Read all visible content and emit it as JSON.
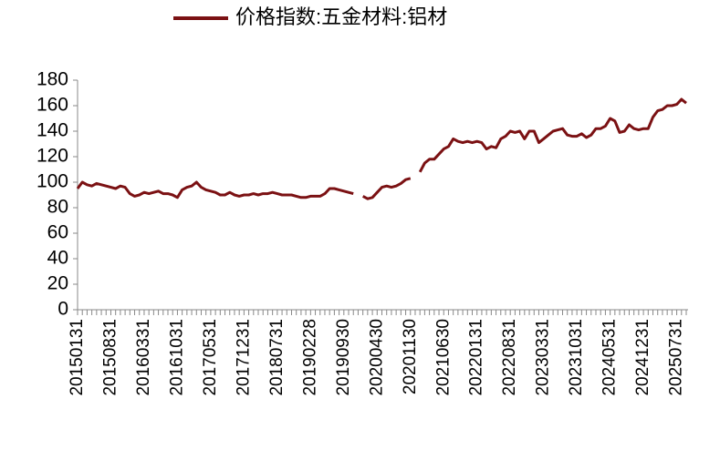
{
  "chart_data": {
    "type": "line",
    "categories": [
      "20150131",
      null,
      null,
      null,
      null,
      null,
      null,
      "20150831",
      null,
      null,
      null,
      null,
      null,
      null,
      "20160331",
      null,
      null,
      null,
      null,
      null,
      null,
      "20161031",
      null,
      null,
      null,
      null,
      null,
      null,
      "20170531",
      null,
      null,
      null,
      null,
      null,
      null,
      "20171231",
      null,
      null,
      null,
      null,
      null,
      null,
      "20180731",
      null,
      null,
      null,
      null,
      null,
      null,
      "20190228",
      null,
      null,
      null,
      null,
      null,
      null,
      "20190930",
      null,
      null,
      null,
      null,
      null,
      null,
      "20200430",
      null,
      null,
      null,
      null,
      null,
      null,
      "20201130",
      null,
      null,
      null,
      null,
      null,
      null,
      "20210630",
      null,
      null,
      null,
      null,
      null,
      null,
      "20220131",
      null,
      null,
      null,
      null,
      null,
      null,
      "20220831",
      null,
      null,
      null,
      null,
      null,
      null,
      "20230331",
      null,
      null,
      null,
      null,
      null,
      null,
      "20231031",
      null,
      null,
      null,
      null,
      null,
      null,
      "20240531",
      null,
      null,
      null,
      null,
      null,
      null,
      "20241231",
      null,
      null,
      null,
      null,
      null,
      null,
      "20250731",
      null,
      null
    ],
    "series": [
      {
        "name": "价格指数:五金材料:铝材",
        "color": "#7b1113",
        "values": [
          95,
          100,
          98,
          97,
          99,
          98,
          97,
          96,
          95,
          97,
          96,
          91,
          89,
          90,
          92,
          91,
          92,
          93,
          91,
          91,
          90,
          88,
          94,
          96,
          97,
          100,
          96,
          94,
          93,
          92,
          90,
          90,
          92,
          90,
          89,
          90,
          90,
          91,
          90,
          91,
          91,
          92,
          91,
          90,
          90,
          90,
          89,
          88,
          88,
          89,
          89,
          89,
          91,
          95,
          95,
          94,
          93,
          92,
          91,
          null,
          89,
          87,
          88,
          92,
          96,
          97,
          96,
          97,
          99,
          102,
          103,
          null,
          108,
          115,
          118,
          118,
          122,
          126,
          128,
          134,
          132,
          131,
          132,
          131,
          132,
          131,
          126,
          128,
          127,
          134,
          136,
          140,
          139,
          140,
          134,
          140,
          140,
          131,
          134,
          137,
          140,
          141,
          142,
          137,
          136,
          136,
          138,
          135,
          137,
          142,
          142,
          144,
          150,
          148,
          139,
          140,
          145,
          142,
          141,
          142,
          142,
          151,
          156,
          157,
          160,
          160,
          161,
          165,
          162
        ]
      }
    ],
    "ylim": [
      0,
      180
    ],
    "yticks": [
      0,
      20,
      40,
      60,
      80,
      100,
      120,
      140,
      160,
      180
    ]
  }
}
